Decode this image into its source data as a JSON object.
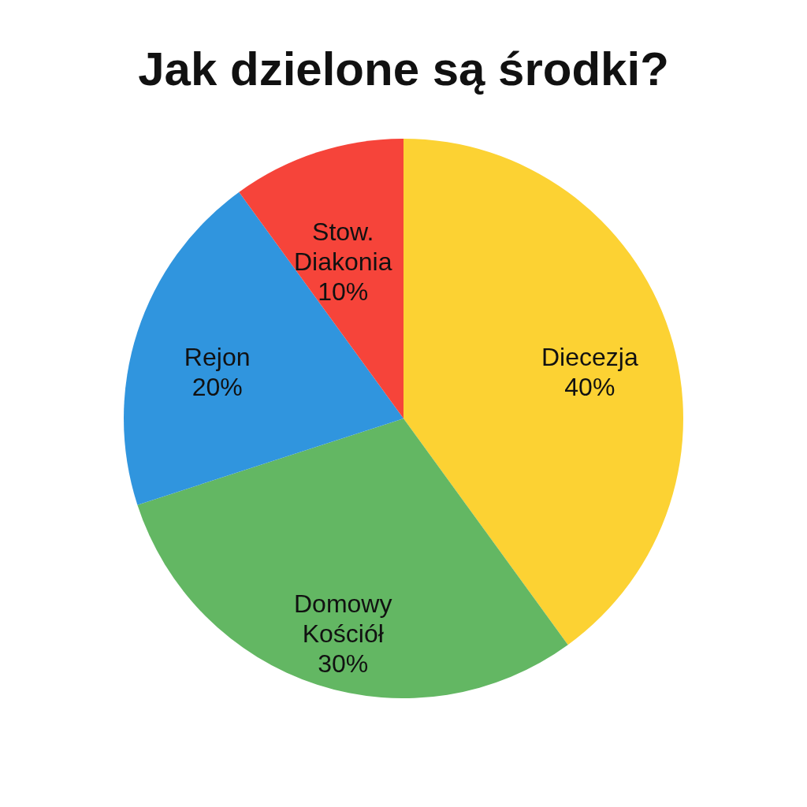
{
  "chart_data": {
    "type": "pie",
    "title": "Jak dzielone są środki?",
    "categories": [
      "Diecezja",
      "Domowy Kościół",
      "Rejon",
      "Stow. Diakonia"
    ],
    "values": [
      40,
      30,
      20,
      10
    ],
    "colors": [
      "#fcd233",
      "#63b763",
      "#3095de",
      "#f6443a"
    ],
    "value_labels": [
      "40%",
      "30%",
      "20%",
      "10%"
    ],
    "legend": false
  }
}
